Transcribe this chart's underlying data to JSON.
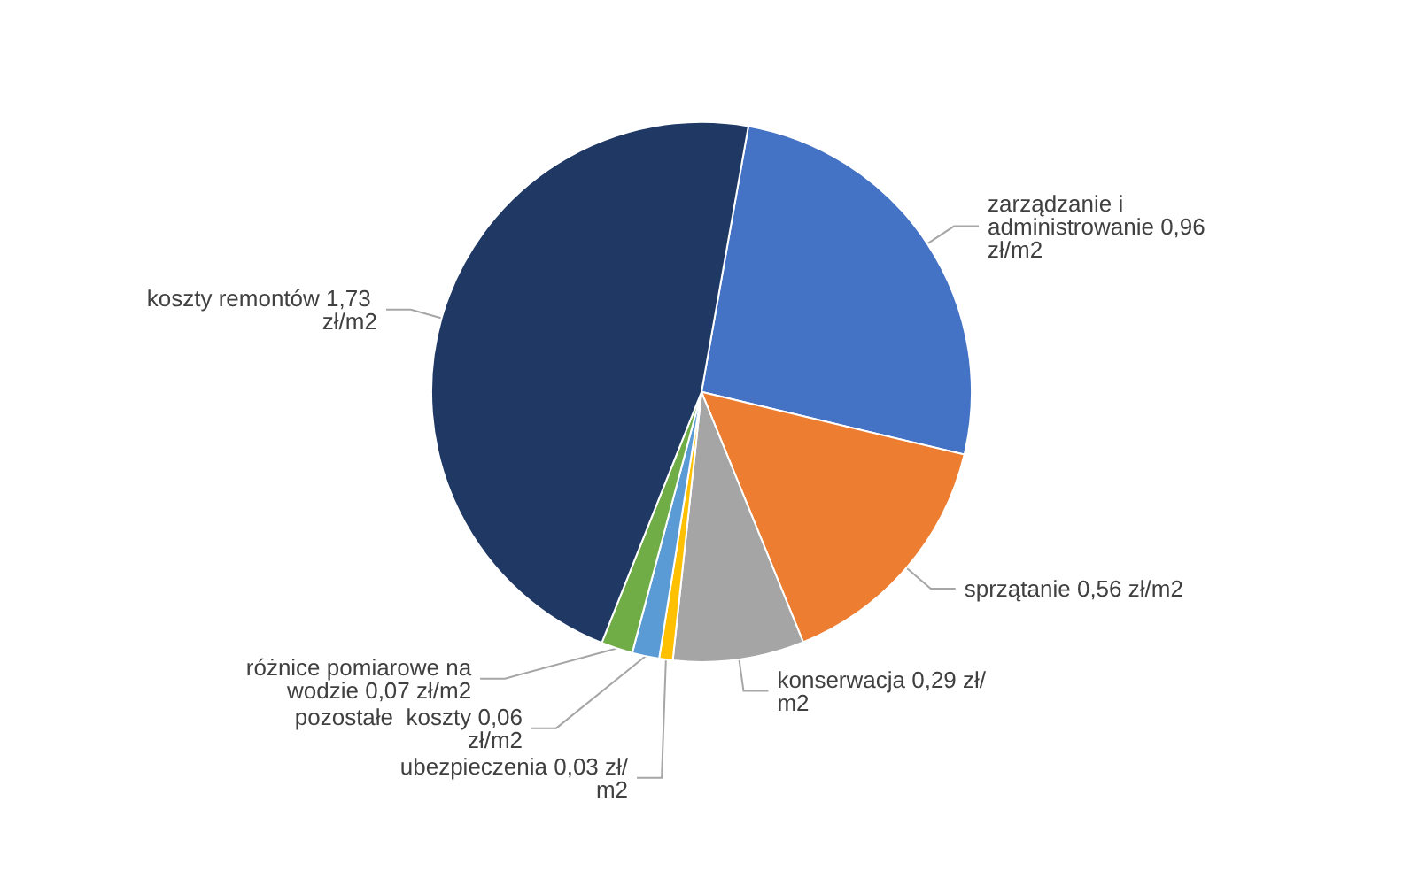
{
  "chart_data": {
    "type": "pie",
    "categories": [
      "zarządzanie i administrowanie",
      "sprzątanie",
      "konserwacja",
      "ubezpieczenia",
      "pozostałe  koszty",
      "różnice pomiarowe na wodzie",
      "koszty remontów"
    ],
    "values": [
      0.96,
      0.56,
      0.29,
      0.03,
      0.06,
      0.07,
      1.73
    ],
    "value_labels": [
      "0,96 zł/m2",
      "0,56 zł/m2",
      "0,29 zł/m2",
      "0,03 zł/m2",
      "0,06 zł/m2",
      "0,07 zł/m2",
      "1,73 zł/m2"
    ],
    "colors": [
      "#4472c4",
      "#ed7d31",
      "#a5a5a5",
      "#ffc000",
      "#5b9bd5",
      "#70ad47",
      "#1f3864"
    ],
    "legend": false
  }
}
